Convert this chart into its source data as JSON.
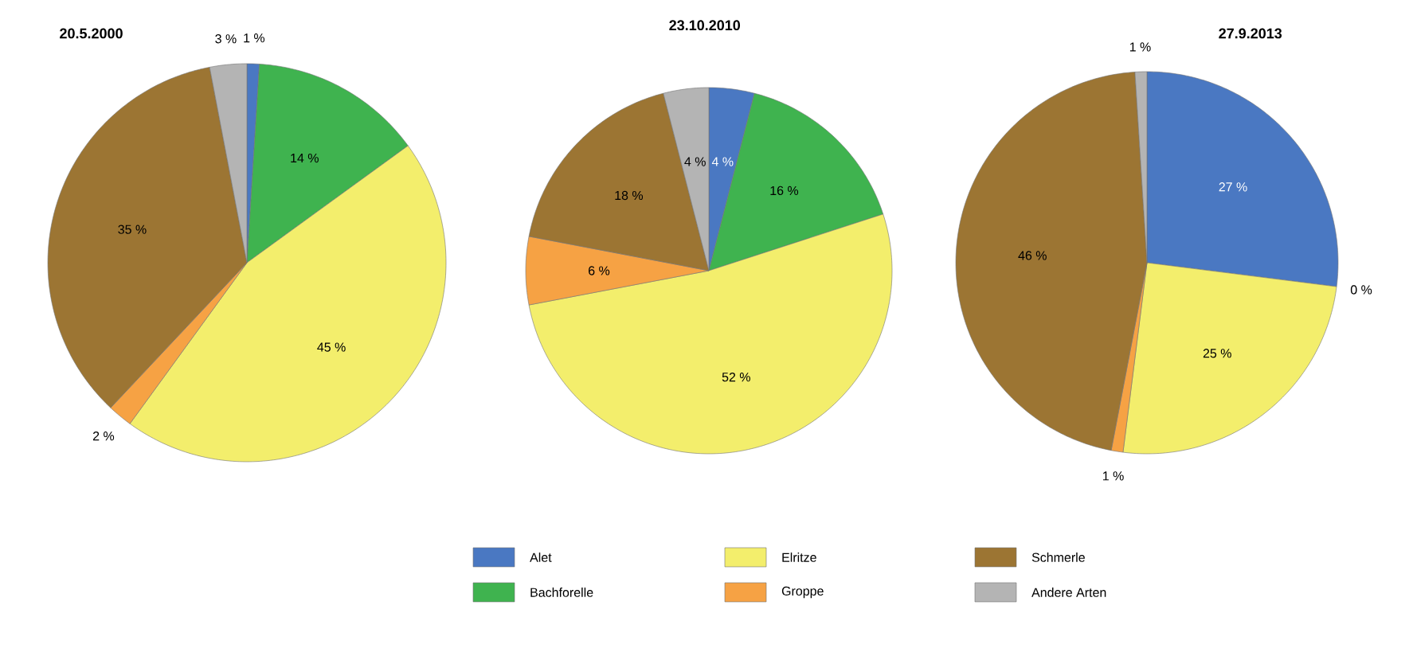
{
  "chart_data": [
    {
      "type": "pie",
      "title": "20.5.2000",
      "categories": [
        null,
        null,
        null,
        null,
        null,
        null
      ],
      "values": [
        1,
        14,
        45,
        2,
        35,
        3
      ],
      "value_labels": [
        "1 %",
        "14 %",
        "45 %",
        "2 %",
        "35 %",
        "3 %"
      ],
      "colors": [
        "#4a78c2",
        "#3fb34f",
        "#f3ee6c",
        "#f6a244",
        "#9c7533",
        "#b4b4b4"
      ]
    },
    {
      "type": "pie",
      "title": "23.10.2010",
      "categories": [
        "Alet",
        "Bachforelle",
        "Elritze",
        "Groppe",
        "Schmerle",
        "Andere Arten"
      ],
      "values": [
        4,
        16,
        52,
        6,
        18,
        4
      ],
      "value_labels": [
        "4 %",
        "16 %",
        "52 %",
        "6 %",
        "18 %",
        "4 %"
      ],
      "colors": [
        "#4a78c2",
        "#3fb34f",
        "#f3ee6c",
        "#f6a244",
        "#9c7533",
        "#b4b4b4"
      ],
      "legend": "bottom"
    },
    {
      "type": "pie",
      "title": "27.9.2013",
      "categories": [
        null,
        null,
        null,
        null,
        null,
        null
      ],
      "values": [
        27,
        0,
        25,
        1,
        46,
        1
      ],
      "value_labels": [
        "27 %",
        "0 %",
        "25 %",
        "1 %",
        "46 %",
        "1 %"
      ],
      "colors": [
        "#4a78c2",
        "#3fb34f",
        "#f3ee6c",
        "#f6a244",
        "#9c7533",
        "#b4b4b4"
      ]
    }
  ]
}
